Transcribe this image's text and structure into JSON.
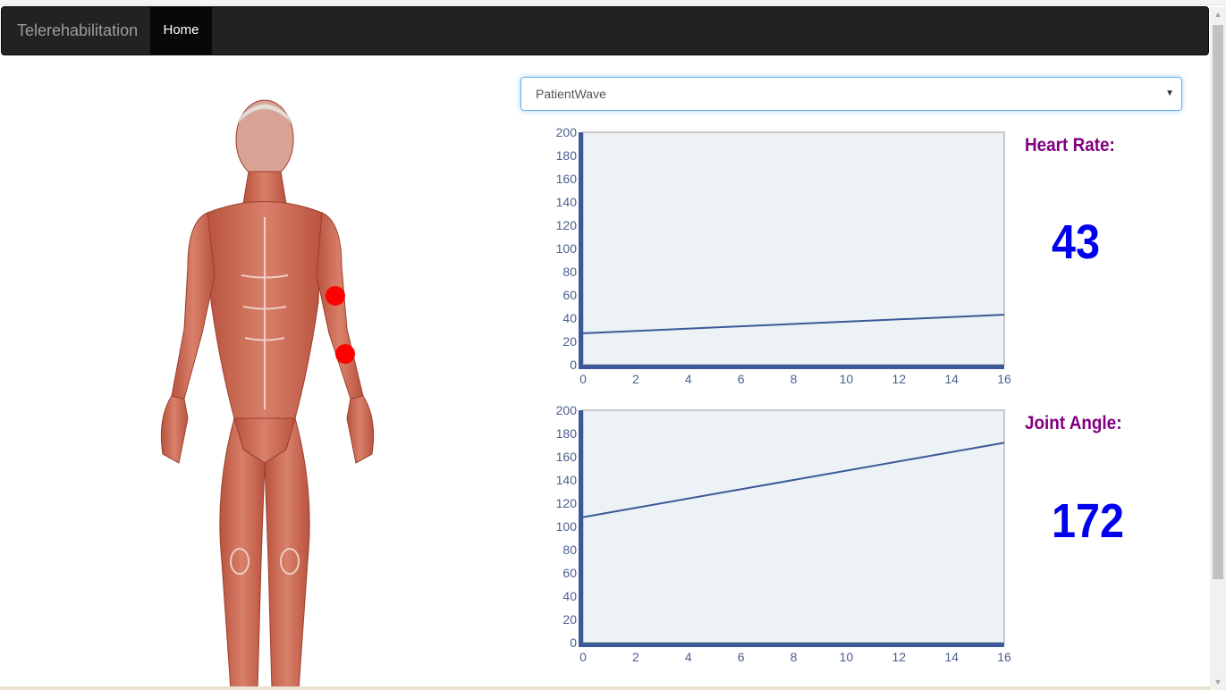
{
  "navbar": {
    "brand": "Telerehabilitation",
    "home": "Home"
  },
  "patient_select": {
    "selected": "PatientWave"
  },
  "metrics": {
    "heart_rate": {
      "label": "Heart Rate:",
      "value": "43"
    },
    "joint_angle": {
      "label": "Joint Angle:",
      "value": "172"
    }
  },
  "sensors": {
    "marker_color": "#ff0000"
  },
  "colors": {
    "brand_text": "#9d9d9d",
    "metric_label": "#800080",
    "metric_value": "#0000ee",
    "series_line": "#3b5998"
  },
  "chart_data": [
    {
      "type": "line",
      "title": "",
      "x": [
        0,
        16
      ],
      "series": [
        {
          "values": [
            27,
            43
          ]
        }
      ],
      "xlim": [
        0,
        16
      ],
      "ylim": [
        0,
        200
      ],
      "xticks": [
        0,
        2,
        4,
        6,
        8,
        10,
        12,
        14,
        16
      ],
      "yticks": [
        0,
        20,
        40,
        60,
        80,
        100,
        120,
        140,
        160,
        180,
        200
      ],
      "grid": false
    },
    {
      "type": "line",
      "title": "",
      "x": [
        0,
        16
      ],
      "series": [
        {
          "values": [
            108,
            172
          ]
        }
      ],
      "xlim": [
        0,
        16
      ],
      "ylim": [
        0,
        200
      ],
      "xticks": [
        0,
        2,
        4,
        6,
        8,
        10,
        12,
        14,
        16
      ],
      "yticks": [
        0,
        20,
        40,
        60,
        80,
        100,
        120,
        140,
        160,
        180,
        200
      ],
      "grid": false
    }
  ]
}
